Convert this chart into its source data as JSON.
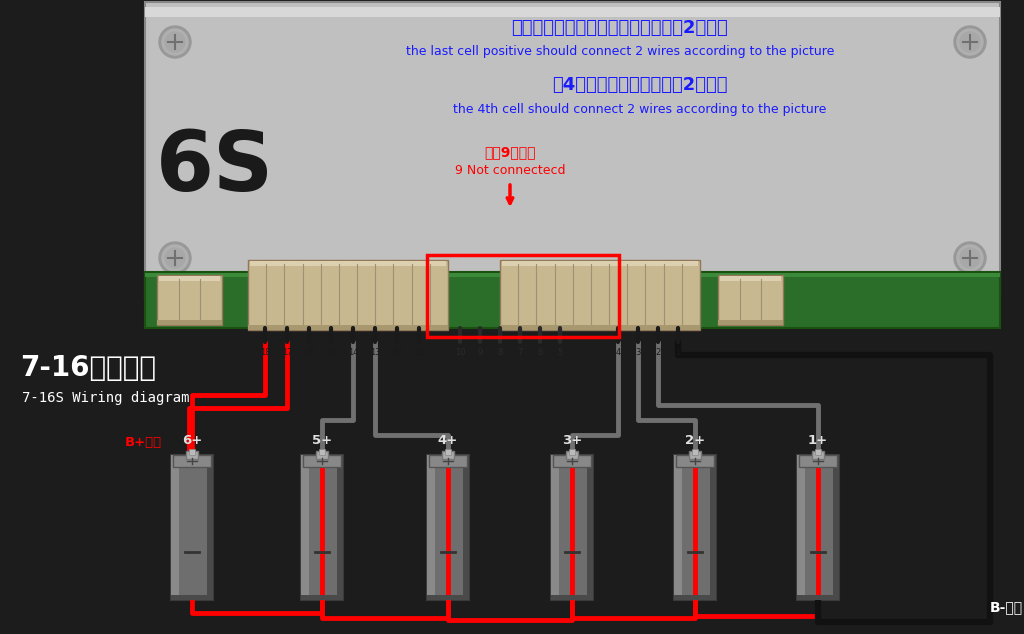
{
  "bg_color": "#1c1c1c",
  "bms_body_color": "#b8b8b8",
  "bms_shadow_color": "#999999",
  "pcb_color": "#2a6e2a",
  "pcb_dark": "#1e5a1e",
  "title_chinese1": "最后一串电池总正极上要接如图对应2条排线",
  "title_english1": "the last cell positive should connect 2 wires according to the picture",
  "title_chinese2": "笥4串电池上要接如图对应2条排线",
  "title_english2": "the 4th cell should connect 2 wires according to the picture",
  "note_chinese": "此変9根不接",
  "note_english": "9 Not connectecd",
  "label_6s": "6S",
  "wiring_label_cn": "7-16串接线图",
  "wiring_label_en": "7-16S Wiring diagram",
  "bplus_label": "B+总正",
  "bminus_label": "B-总负",
  "blue_color": "#1a1aff",
  "red_color": "#ff0000",
  "gray_wire_color": "#707070",
  "dark_gray_wire": "#505050",
  "black_wire_color": "#111111",
  "battery_body_color": "#6a6a6a",
  "connector_color": "#c8b890",
  "connector_dark": "#a89870",
  "screw_color": "#a0a0a0",
  "red_box_color": "#ff0000",
  "white": "#ffffff",
  "black": "#000000"
}
